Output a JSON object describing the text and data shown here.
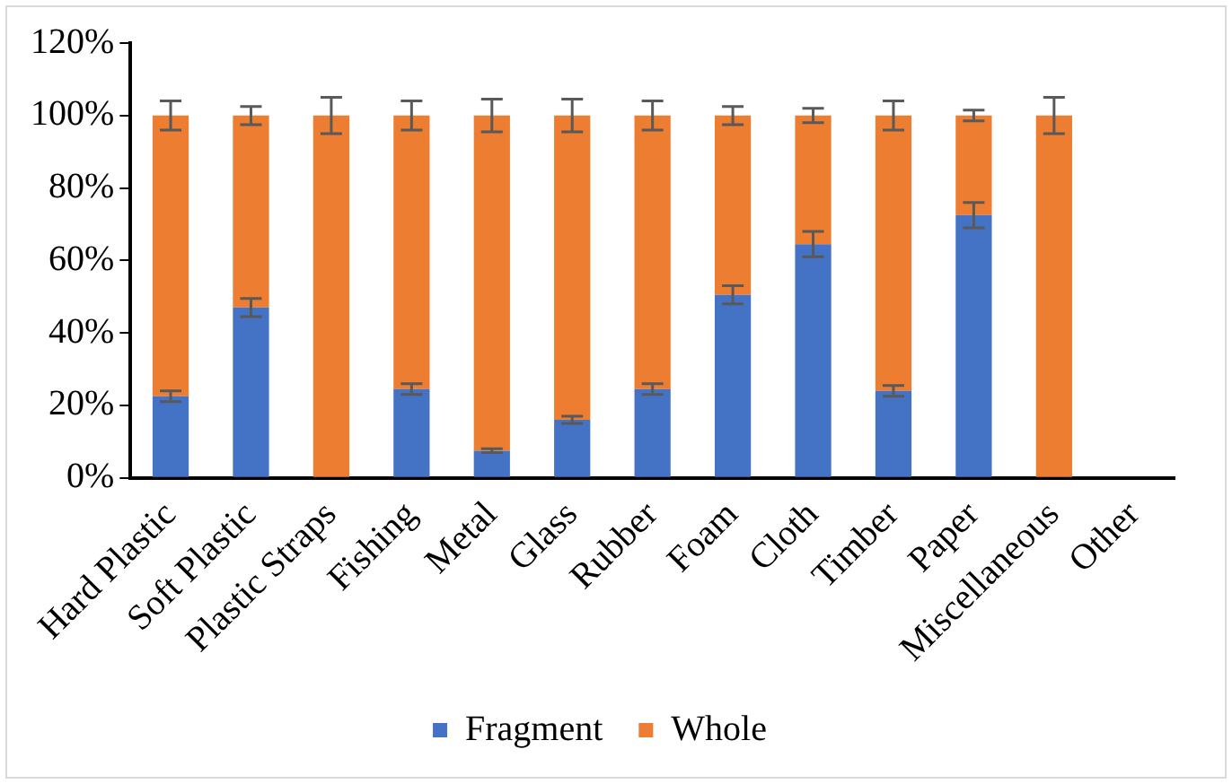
{
  "chart_data": {
    "type": "bar",
    "stacked": true,
    "categories": [
      "Hard Plastic",
      "Soft Plastic",
      "Plastic Straps",
      "Fishing",
      "Metal",
      "Glass",
      "Rubber",
      "Foam",
      "Cloth",
      "Timber",
      "Paper",
      "Miscellaneous",
      "Other"
    ],
    "series": [
      {
        "name": "Fragment",
        "color": "#4472c4",
        "values": [
          22.5,
          47,
          0,
          24.5,
          7.5,
          16,
          24.5,
          50.5,
          64.5,
          24,
          72.5,
          0,
          0
        ],
        "errors": [
          1.5,
          2.5,
          null,
          1.5,
          0.5,
          1,
          1.5,
          2.5,
          3.5,
          1.5,
          3.5,
          null,
          null
        ]
      },
      {
        "name": "Whole",
        "color": "#ed7d31",
        "values": [
          77.5,
          53,
          100,
          75.5,
          92.5,
          84,
          75.5,
          49.5,
          35.5,
          76,
          27.5,
          100,
          0
        ],
        "errors": [
          4,
          2.5,
          5,
          4,
          4.5,
          4.5,
          4,
          2.5,
          2,
          4,
          1.5,
          5,
          null
        ]
      }
    ],
    "ylim": [
      0,
      120
    ],
    "yticks": [
      {
        "value": 0,
        "label": "0%"
      },
      {
        "value": 20,
        "label": "20%"
      },
      {
        "value": 40,
        "label": "40%"
      },
      {
        "value": 60,
        "label": "60%"
      },
      {
        "value": 80,
        "label": "80%"
      },
      {
        "value": 100,
        "label": "100%"
      },
      {
        "value": 120,
        "label": "120%"
      }
    ],
    "grid": false,
    "legend": "bottom"
  }
}
